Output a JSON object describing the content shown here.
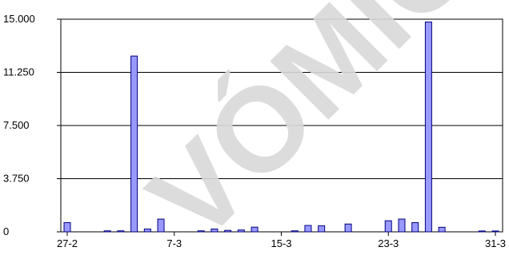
{
  "chart_data": {
    "type": "bar",
    "title": "",
    "xlabel": "",
    "ylabel": "",
    "ylim": [
      0,
      15000
    ],
    "yticks": [
      0,
      3750,
      7500,
      11250,
      15000
    ],
    "ytick_labels": [
      "0",
      "3.750",
      "7.500",
      "11.250",
      "15.000"
    ],
    "x_start_day": 0,
    "x_end_day": 32,
    "xtick_days": [
      0,
      8,
      16,
      24,
      32
    ],
    "xtick_labels": [
      "27-2",
      "7-3",
      "15-3",
      "23-3",
      "31-3"
    ],
    "grid": "horizontal",
    "legend": "none",
    "bar_color": "#9999ff",
    "bar_edge_color": "#000080",
    "days": [
      0,
      3,
      4,
      5,
      6,
      7,
      10,
      11,
      12,
      13,
      14,
      17,
      18,
      19,
      21,
      24,
      25,
      26,
      27,
      28,
      31,
      32
    ],
    "values": [
      650,
      70,
      70,
      12400,
      200,
      900,
      70,
      200,
      100,
      130,
      330,
      70,
      450,
      430,
      550,
      780,
      900,
      650,
      14800,
      320,
      60,
      60
    ]
  },
  "watermark": {
    "text": "VÓMIC"
  }
}
